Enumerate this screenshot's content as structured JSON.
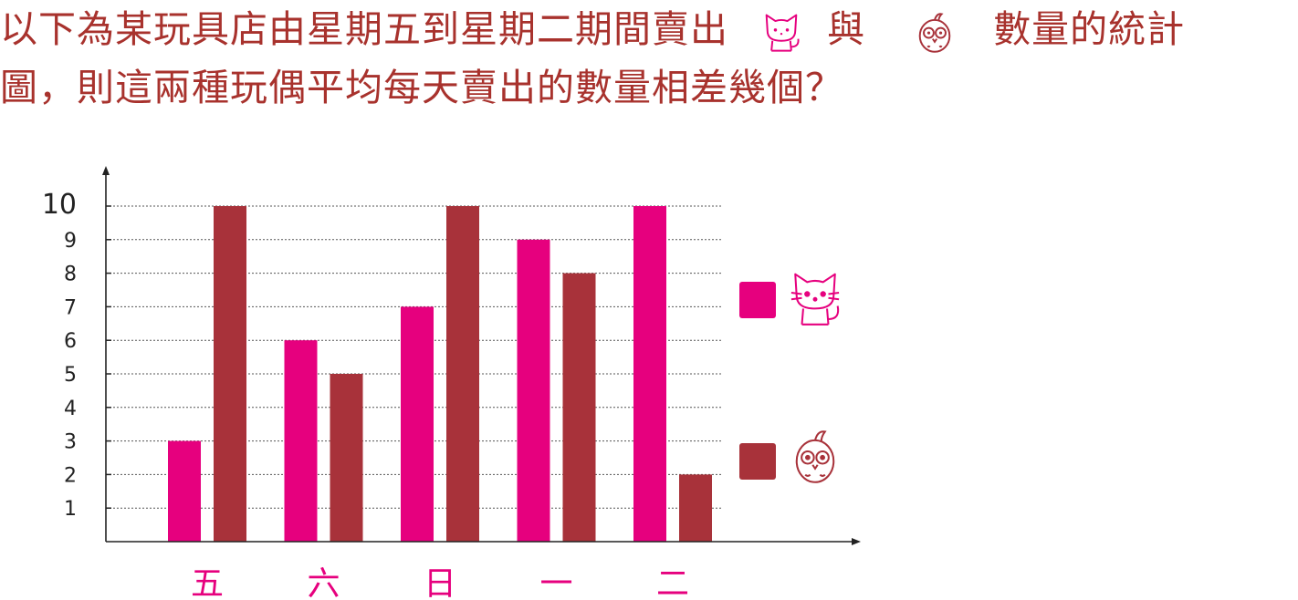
{
  "question": {
    "line1_part1": "以下為某玩具店由星期五到星期二期間賣出",
    "line1_part2": "與",
    "line1_part3": "數量的統計",
    "line2": "圖，則這兩種玩偶平均每天賣出的數量相差幾個？"
  },
  "icons": {
    "series1": "cat-icon",
    "series2": "owl-icon"
  },
  "colors": {
    "text": "#a8322d",
    "series1": "#e6007e",
    "series2": "#a8323a",
    "axis": "#222222",
    "grid": "#555555"
  },
  "chart_data": {
    "type": "bar",
    "categories": [
      "五",
      "六",
      "日",
      "一",
      "二"
    ],
    "series": [
      {
        "values": [
          3,
          6,
          7,
          9,
          10
        ]
      },
      {
        "values": [
          10,
          5,
          10,
          8,
          2
        ]
      }
    ],
    "yticks": [
      "1",
      "2",
      "3",
      "4",
      "5",
      "6",
      "7",
      "8",
      "9",
      "10"
    ],
    "ylim": [
      0,
      10
    ],
    "grid": true,
    "legend_position": "right"
  }
}
